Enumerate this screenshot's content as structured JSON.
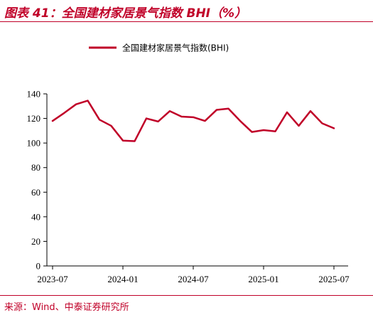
{
  "figure": {
    "title": "图表 41：全国建材家居景气指数 BHI（%）",
    "source": "来源：Wind、中泰证券研究所"
  },
  "colors": {
    "accent": "#c00028",
    "series": "#c00028",
    "axis": "#000000"
  },
  "chart_data": {
    "type": "line",
    "x": [
      "2023-07",
      "2023-08",
      "2023-09",
      "2023-10",
      "2023-11",
      "2023-12",
      "2024-01",
      "2024-02",
      "2024-03",
      "2024-04",
      "2024-05",
      "2024-06",
      "2024-07",
      "2024-08",
      "2024-09",
      "2024-10",
      "2024-11",
      "2024-12",
      "2025-01",
      "2025-02",
      "2025-03",
      "2025-04",
      "2025-05",
      "2025-06",
      "2025-07"
    ],
    "series": [
      {
        "name": "全国建材家居景气指数(BHI)",
        "values": [
          118,
          124.5,
          131.5,
          134.5,
          119,
          114,
          102,
          101.5,
          120,
          117.5,
          126,
          121.5,
          121,
          118,
          127,
          128,
          118,
          109,
          110.5,
          109.5,
          125,
          114,
          126,
          116,
          112
        ]
      }
    ],
    "xticks": [
      "2023-07",
      "2024-01",
      "2024-07",
      "2025-01",
      "2025-07"
    ],
    "yticks": [
      "0",
      "20",
      "40",
      "60",
      "80",
      "100",
      "120",
      "140"
    ],
    "ylim": [
      0,
      140
    ],
    "grid": false,
    "legend_position": "top-center",
    "title": "",
    "xlabel": "",
    "ylabel": ""
  }
}
